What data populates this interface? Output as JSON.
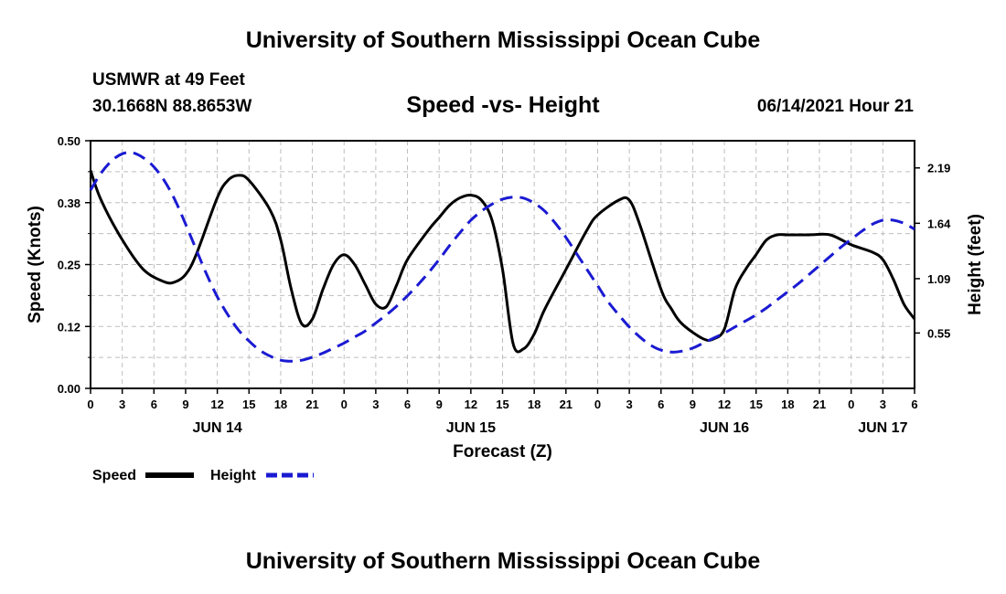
{
  "header": {
    "title": "University of Southern Mississippi Ocean Cube",
    "station": "USMWR at 49 Feet",
    "coordinates": "30.1668N  88.8653W",
    "chart_title": "Speed -vs- Height",
    "datetime": "06/14/2021 Hour 21"
  },
  "footer": {
    "title": "University of Southern Mississippi Ocean Cube"
  },
  "colors": {
    "speed": "#000000",
    "height": "#1a1ad2",
    "grid": "#bdbdbd"
  },
  "chart_data": {
    "type": "line",
    "title": "Speed -vs- Height",
    "xlabel": "Forecast (Z)",
    "ylabel_left": "Speed (Knots)",
    "ylabel_right": "Height (feet)",
    "x_range_hours": [
      0,
      78
    ],
    "x_tick_labels": [
      "0",
      "3",
      "6",
      "9",
      "12",
      "15",
      "18",
      "21",
      "0",
      "3",
      "6",
      "9",
      "12",
      "15",
      "18",
      "21",
      "0",
      "3",
      "6",
      "9",
      "12",
      "15",
      "18",
      "21",
      "0",
      "3",
      "6"
    ],
    "date_labels": [
      {
        "label": "JUN 14",
        "hour": 12
      },
      {
        "label": "JUN 15",
        "hour": 36
      },
      {
        "label": "JUN 16",
        "hour": 60
      },
      {
        "label": "JUN 17",
        "hour": 75
      }
    ],
    "y_left": {
      "range": [
        0,
        0.5
      ],
      "ticks": [
        "0.00",
        "0.12",
        "0.25",
        "0.38",
        "0.50"
      ],
      "tick_values": [
        0,
        0.125,
        0.25,
        0.375,
        0.5
      ]
    },
    "y_right": {
      "range": [
        0,
        2.46
      ],
      "ticks": [
        "0.55",
        "1.09",
        "1.64",
        "2.19"
      ],
      "tick_values": [
        0.55,
        1.09,
        1.64,
        2.19
      ]
    },
    "grid": true,
    "legend_position": "bottom-left",
    "series": [
      {
        "name": "Speed",
        "axis": "left",
        "style": "solid",
        "x": [
          0,
          1,
          3,
          5,
          7,
          8,
          9,
          10,
          12,
          13,
          14,
          15,
          17,
          18,
          19,
          20,
          21,
          22,
          23,
          24,
          25,
          26,
          27,
          28,
          29,
          30,
          32,
          33,
          34,
          35,
          36,
          37,
          38,
          39,
          40,
          41,
          42,
          43,
          45,
          47,
          48,
          50,
          51,
          52,
          54,
          55,
          56,
          58,
          59,
          60,
          61,
          62,
          63,
          64,
          65,
          66,
          68,
          70,
          72,
          74,
          75,
          76,
          77,
          78
        ],
        "values": [
          0.44,
          0.38,
          0.3,
          0.24,
          0.215,
          0.215,
          0.23,
          0.27,
          0.385,
          0.42,
          0.43,
          0.42,
          0.36,
          0.3,
          0.2,
          0.13,
          0.14,
          0.2,
          0.25,
          0.27,
          0.25,
          0.21,
          0.17,
          0.165,
          0.21,
          0.26,
          0.32,
          0.345,
          0.37,
          0.385,
          0.39,
          0.38,
          0.34,
          0.24,
          0.09,
          0.08,
          0.11,
          0.16,
          0.24,
          0.32,
          0.35,
          0.38,
          0.38,
          0.33,
          0.2,
          0.16,
          0.13,
          0.1,
          0.1,
          0.12,
          0.2,
          0.24,
          0.27,
          0.3,
          0.31,
          0.31,
          0.31,
          0.31,
          0.29,
          0.275,
          0.26,
          0.22,
          0.17,
          0.14
        ]
      },
      {
        "name": "Height",
        "axis": "right",
        "style": "dashed",
        "x": [
          0,
          1,
          2,
          3,
          4,
          5,
          6,
          7,
          8,
          9,
          10,
          11,
          12,
          13,
          14,
          15,
          16,
          17,
          18,
          19,
          20,
          21,
          22,
          23,
          24,
          25,
          26,
          27,
          28,
          29,
          30,
          31,
          32,
          33,
          34,
          35,
          36,
          37,
          38,
          39,
          40,
          41,
          42,
          43,
          44,
          45,
          46,
          47,
          48,
          49,
          50,
          51,
          52,
          53,
          54,
          55,
          56,
          57,
          58,
          59,
          60,
          61,
          62,
          63,
          64,
          65,
          66,
          67,
          68,
          69,
          70,
          71,
          72,
          73,
          74,
          75,
          76,
          77,
          78
        ],
        "values": [
          1.97,
          2.14,
          2.26,
          2.33,
          2.34,
          2.29,
          2.2,
          2.06,
          1.87,
          1.63,
          1.38,
          1.13,
          0.91,
          0.73,
          0.58,
          0.47,
          0.38,
          0.32,
          0.28,
          0.27,
          0.28,
          0.31,
          0.35,
          0.4,
          0.45,
          0.51,
          0.57,
          0.65,
          0.73,
          0.82,
          0.92,
          1.03,
          1.15,
          1.28,
          1.42,
          1.55,
          1.67,
          1.76,
          1.83,
          1.88,
          1.9,
          1.89,
          1.84,
          1.76,
          1.64,
          1.5,
          1.34,
          1.18,
          1.02,
          0.86,
          0.73,
          0.61,
          0.51,
          0.43,
          0.38,
          0.36,
          0.37,
          0.4,
          0.45,
          0.5,
          0.55,
          0.61,
          0.67,
          0.73,
          0.8,
          0.88,
          0.96,
          1.04,
          1.13,
          1.22,
          1.31,
          1.4,
          1.48,
          1.56,
          1.63,
          1.67,
          1.67,
          1.64,
          1.58
        ]
      }
    ]
  }
}
